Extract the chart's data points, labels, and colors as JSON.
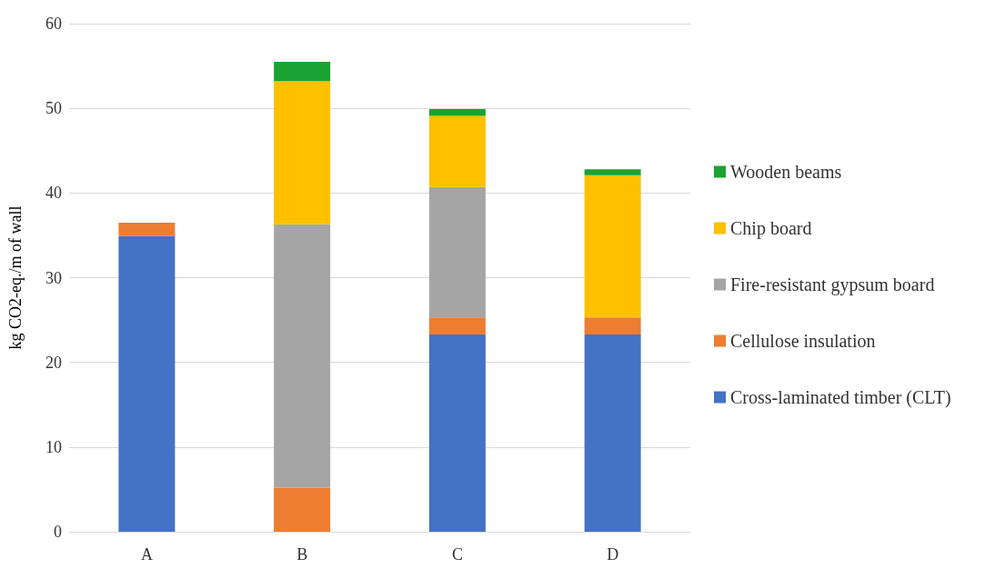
{
  "chart_data": {
    "type": "bar",
    "stacked": true,
    "ylabel": "kg CO2-eq./m of wall",
    "categories": [
      "A",
      "B",
      "C",
      "D"
    ],
    "series": [
      {
        "name": "Cross-laminated timber (CLT)",
        "color": "#4472c4",
        "values": [
          34.9,
          0,
          23.3,
          23.3
        ]
      },
      {
        "name": "Cellulose insulation",
        "color": "#ed7d31",
        "values": [
          1.6,
          5.2,
          2.0,
          2.0
        ]
      },
      {
        "name": "Fire-resistant gypsum board",
        "color": "#a5a5a5",
        "values": [
          0,
          31.1,
          15.4,
          0
        ]
      },
      {
        "name": "Chip board",
        "color": "#ffc000",
        "values": [
          0,
          16.9,
          8.4,
          16.8
        ]
      },
      {
        "name": "Wooden beams",
        "color": "#1aa232",
        "values": [
          0,
          2.3,
          0.8,
          0.7
        ]
      }
    ],
    "ylim": [
      0,
      60
    ],
    "yticks": [
      0,
      10,
      20,
      30,
      40,
      50,
      60
    ],
    "grid": "y",
    "legend": "right"
  }
}
